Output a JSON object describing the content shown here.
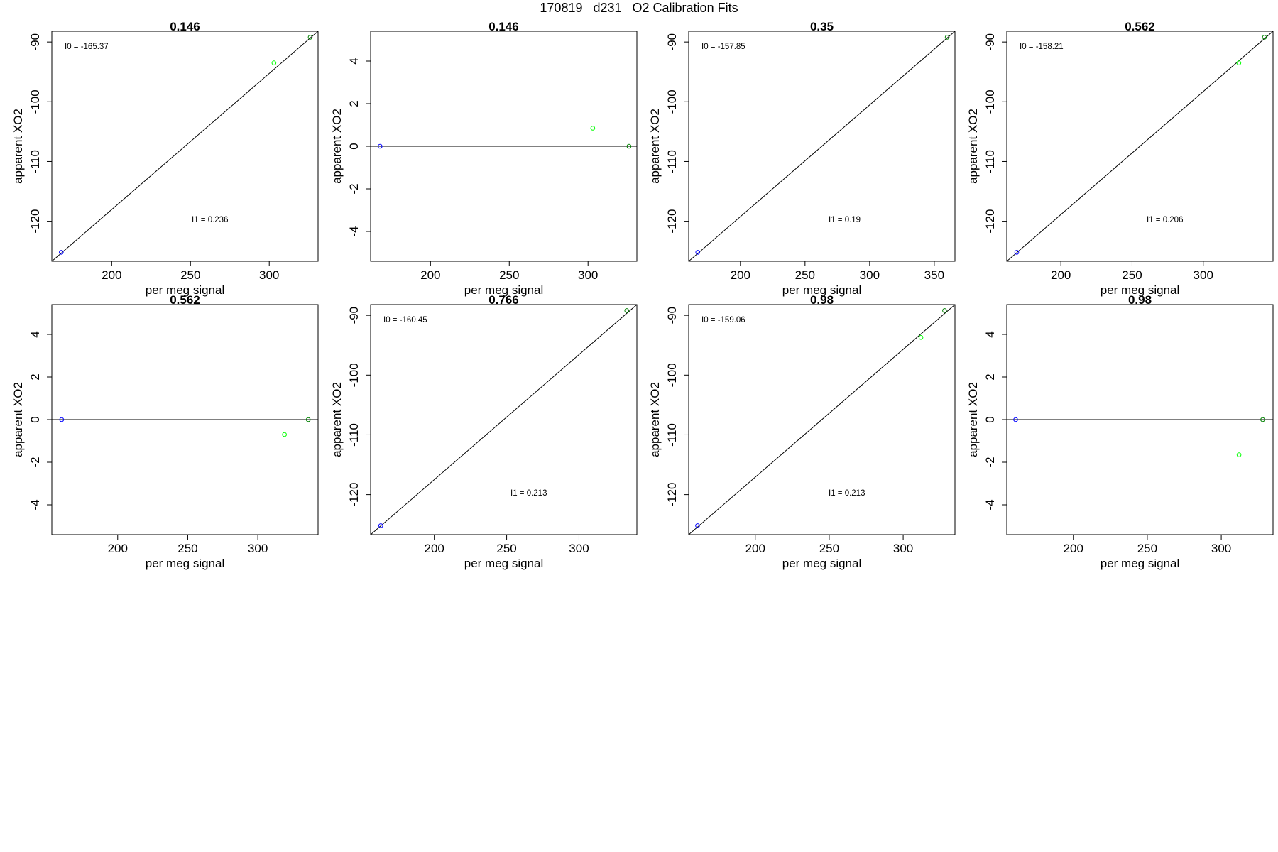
{
  "figure": {
    "title": "170819   d231   O2 Calibration Fits"
  },
  "colors": {
    "axis": "#000000",
    "fit_line": "#000000",
    "point_low": "#0000ff",
    "point_mid": "#00ff00",
    "point_high": "#008000"
  },
  "chart_data": [
    {
      "type": "scatter",
      "title": "0.146",
      "xlabel": "per meg signal",
      "ylabel": "apparent XO2",
      "xlim": [
        162,
        331
      ],
      "ylim": [
        -126.7,
        -88.2
      ],
      "xticks": [
        200,
        250,
        300
      ],
      "yticks": [
        -90,
        -100,
        -110,
        -120
      ],
      "points": [
        {
          "x": 168,
          "y": -125.2,
          "color": "#0000ff"
        },
        {
          "x": 303,
          "y": -93.5,
          "color": "#00ff00"
        },
        {
          "x": 326,
          "y": -89.2,
          "color": "#008000"
        }
      ],
      "fit_line": {
        "x": [
          162,
          331
        ],
        "y": [
          -126.7,
          -88.2
        ]
      },
      "annotations": [
        "I0 =  -165.37",
        "I1 =  0.236"
      ]
    },
    {
      "type": "scatter",
      "title": "0.146",
      "xlabel": "per meg signal",
      "ylabel": "apparent XO2",
      "xlim": [
        162,
        331
      ],
      "ylim": [
        -5.4,
        5.4
      ],
      "xticks": [
        200,
        250,
        300
      ],
      "yticks": [
        4,
        2,
        0,
        -2,
        -4
      ],
      "points": [
        {
          "x": 168,
          "y": 0,
          "color": "#0000ff"
        },
        {
          "x": 303,
          "y": 0.85,
          "color": "#00ff00"
        },
        {
          "x": 326,
          "y": 0,
          "color": "#008000"
        }
      ],
      "fit_line": {
        "x": [
          162,
          331
        ],
        "y": [
          0,
          0
        ]
      },
      "annotations": []
    },
    {
      "type": "scatter",
      "title": "0.35",
      "xlabel": "per meg signal",
      "ylabel": "apparent XO2",
      "xlim": [
        160,
        366
      ],
      "ylim": [
        -126.7,
        -88.2
      ],
      "xticks": [
        200,
        250,
        300,
        350
      ],
      "yticks": [
        -90,
        -100,
        -110,
        -120
      ],
      "points": [
        {
          "x": 167,
          "y": -125.2,
          "color": "#0000ff"
        },
        {
          "x": 360,
          "y": -89.2,
          "color": "#008000"
        }
      ],
      "fit_line": {
        "x": [
          160,
          366
        ],
        "y": [
          -126.7,
          -88.2
        ]
      },
      "annotations": [
        "I0 =  -157.85",
        "I1 =  0.19"
      ]
    },
    {
      "type": "scatter",
      "title": "0.562",
      "xlabel": "per meg signal",
      "ylabel": "apparent XO2",
      "xlim": [
        162,
        349
      ],
      "ylim": [
        -126.7,
        -88.2
      ],
      "xticks": [
        200,
        250,
        300
      ],
      "yticks": [
        -90,
        -100,
        -110,
        -120
      ],
      "points": [
        {
          "x": 169,
          "y": -125.2,
          "color": "#0000ff"
        },
        {
          "x": 325,
          "y": -93.5,
          "color": "#00ff00"
        },
        {
          "x": 343,
          "y": -89.2,
          "color": "#008000"
        }
      ],
      "fit_line": {
        "x": [
          162,
          349
        ],
        "y": [
          -126.7,
          -88.2
        ]
      },
      "annotations": [
        "I0 =  -158.21",
        "I1 =  0.206"
      ]
    },
    {
      "type": "scatter",
      "title": "0.562",
      "xlabel": "per meg signal",
      "ylabel": "apparent XO2",
      "xlim": [
        153,
        343
      ],
      "ylim": [
        -5.4,
        5.4
      ],
      "xticks": [
        200,
        250,
        300
      ],
      "yticks": [
        4,
        2,
        0,
        -2,
        -4
      ],
      "points": [
        {
          "x": 160,
          "y": 0,
          "color": "#0000ff"
        },
        {
          "x": 319,
          "y": -0.7,
          "color": "#00ff00"
        },
        {
          "x": 336,
          "y": 0,
          "color": "#008000"
        }
      ],
      "fit_line": {
        "x": [
          153,
          343
        ],
        "y": [
          0,
          0
        ]
      },
      "annotations": []
    },
    {
      "type": "scatter",
      "title": "0.766",
      "xlabel": "per meg signal",
      "ylabel": "apparent XO2",
      "xlim": [
        156,
        340
      ],
      "ylim": [
        -126.7,
        -88.2
      ],
      "xticks": [
        200,
        250,
        300
      ],
      "yticks": [
        -90,
        -100,
        -110,
        -120
      ],
      "points": [
        {
          "x": 163,
          "y": -125.2,
          "color": "#0000ff"
        },
        {
          "x": 333,
          "y": -89.2,
          "color": "#008000"
        }
      ],
      "fit_line": {
        "x": [
          156,
          340
        ],
        "y": [
          -126.7,
          -88.2
        ]
      },
      "annotations": [
        "I0 =  -160.45",
        "I1 =  0.213"
      ]
    },
    {
      "type": "scatter",
      "title": "0.98",
      "xlabel": "per meg signal",
      "ylabel": "apparent XO2",
      "xlim": [
        155,
        335
      ],
      "ylim": [
        -126.7,
        -88.2
      ],
      "xticks": [
        200,
        250,
        300
      ],
      "yticks": [
        -90,
        -100,
        -110,
        -120
      ],
      "points": [
        {
          "x": 161,
          "y": -125.2,
          "color": "#0000ff"
        },
        {
          "x": 312,
          "y": -93.7,
          "color": "#00ff00"
        },
        {
          "x": 328,
          "y": -89.2,
          "color": "#008000"
        }
      ],
      "fit_line": {
        "x": [
          155,
          335
        ],
        "y": [
          -126.7,
          -88.2
        ]
      },
      "annotations": [
        "I0 =  -159.06",
        "I1 =  0.213"
      ]
    },
    {
      "type": "scatter",
      "title": "0.98",
      "xlabel": "per meg signal",
      "ylabel": "apparent XO2",
      "xlim": [
        155,
        335
      ],
      "ylim": [
        -5.4,
        5.4
      ],
      "xticks": [
        200,
        250,
        300
      ],
      "yticks": [
        4,
        2,
        0,
        -2,
        -4
      ],
      "points": [
        {
          "x": 161,
          "y": 0,
          "color": "#0000ff"
        },
        {
          "x": 312,
          "y": -1.65,
          "color": "#00ff00"
        },
        {
          "x": 328,
          "y": 0,
          "color": "#008000"
        }
      ],
      "fit_line": {
        "x": [
          155,
          335
        ],
        "y": [
          0,
          0
        ]
      },
      "annotations": []
    }
  ]
}
